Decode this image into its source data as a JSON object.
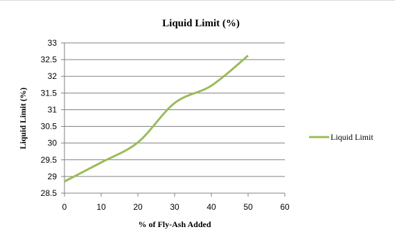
{
  "chart_data": {
    "type": "line",
    "title": "Liquid  Limit  (%)",
    "xlabel": "% of Fly-Ash  Added",
    "ylabel": "Liquid  Limit (%)",
    "xlim": [
      0,
      60
    ],
    "ylim": [
      28.5,
      33
    ],
    "x_ticks": [
      0,
      10,
      20,
      30,
      40,
      50,
      60
    ],
    "y_ticks": [
      28.5,
      29,
      29.5,
      30,
      30.5,
      31,
      31.5,
      32,
      32.5,
      33
    ],
    "grid": "horizontal",
    "legend_position": "right",
    "series": [
      {
        "name": "Liquid Limit",
        "color": "#9bbb59",
        "x": [
          0,
          10,
          20,
          30,
          40,
          50
        ],
        "y": [
          28.85,
          29.42,
          30.02,
          31.2,
          31.72,
          32.62
        ]
      }
    ]
  }
}
